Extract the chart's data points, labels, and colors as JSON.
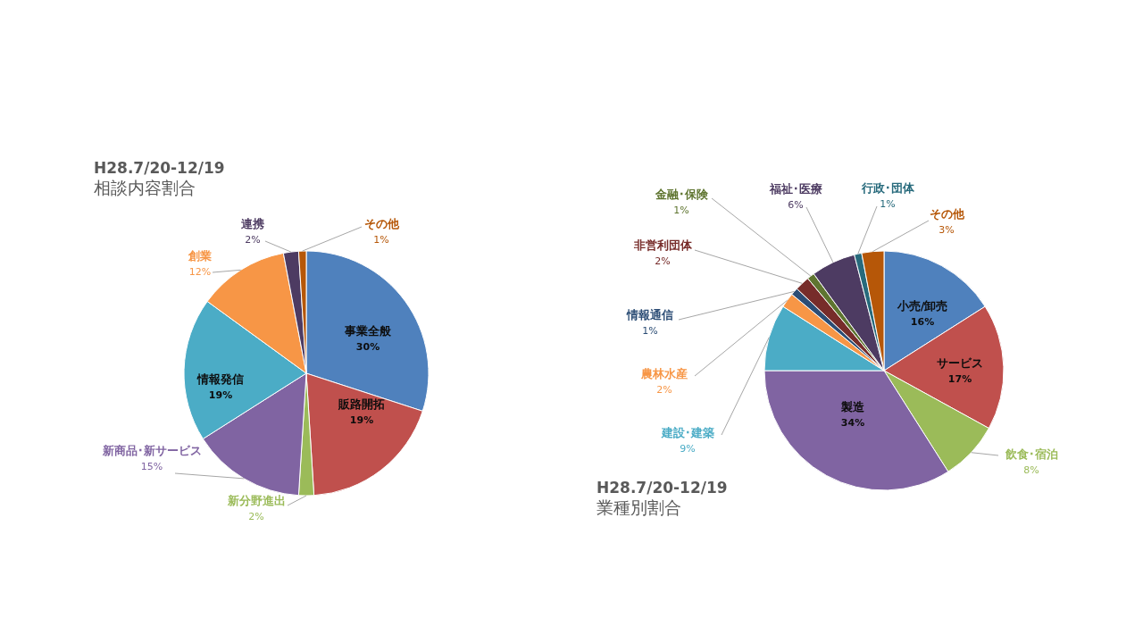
{
  "chart_data": [
    {
      "type": "pie",
      "title": "H28.7/20-12/19",
      "subtitle": "相談内容割合",
      "categories": [
        "事業全般",
        "販路開拓",
        "新分野進出",
        "新商品･新サービス",
        "情報発信",
        "創業",
        "連携",
        "その他"
      ],
      "values": [
        30,
        19,
        2,
        15,
        19,
        12,
        2,
        1
      ],
      "colors": [
        "#4f81bd",
        "#c0504d",
        "#9bbb59",
        "#8064a2",
        "#4bacc6",
        "#f79646",
        "#4d3b62",
        "#b65708"
      ],
      "value_labels": [
        "30%",
        "19%",
        "2%",
        "15%",
        "19%",
        "12%",
        "2%",
        "1%"
      ]
    },
    {
      "type": "pie",
      "title": "H28.7/20-12/19",
      "subtitle": "業種別割合",
      "categories": [
        "小売/卸売",
        "サービス",
        "飲食･宿泊",
        "製造",
        "建設･建築",
        "農林水産",
        "情報通信",
        "非営利団体",
        "金融･保険",
        "福祉･医療",
        "行政･団体",
        "その他"
      ],
      "values": [
        16,
        17,
        8,
        34,
        9,
        2,
        1,
        2,
        1,
        6,
        1,
        3
      ],
      "colors": [
        "#4f81bd",
        "#c0504d",
        "#9bbb59",
        "#8064a2",
        "#4bacc6",
        "#f79646",
        "#2c4d75",
        "#772c2a",
        "#5f7530",
        "#4d3b62",
        "#276a7c",
        "#b65708"
      ],
      "value_labels": [
        "16%",
        "17%",
        "8%",
        "34%",
        "9%",
        "2%",
        "1%",
        "2%",
        "1%",
        "6%",
        "1%",
        "3%"
      ]
    }
  ]
}
